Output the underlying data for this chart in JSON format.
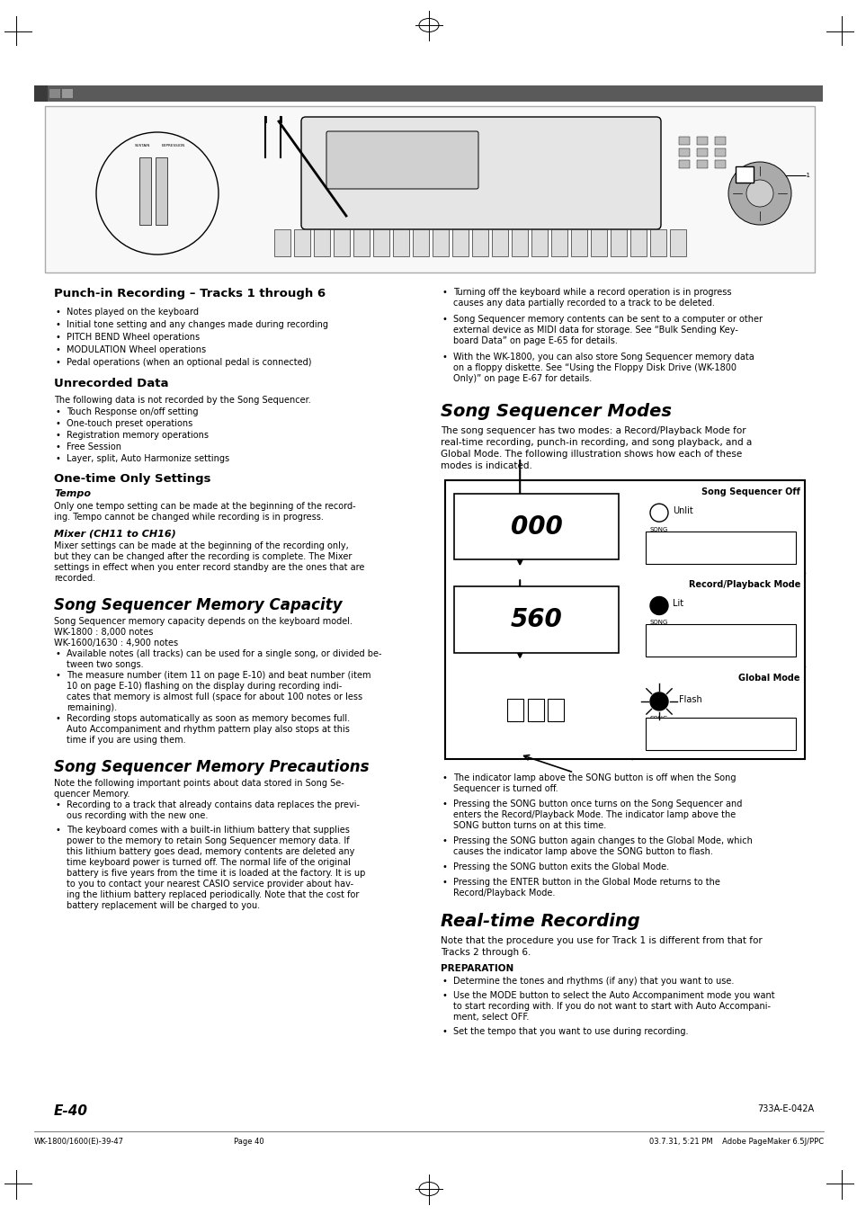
{
  "page_bg": "#ffffff",
  "page_width": 9.54,
  "page_height": 13.51,
  "dpi": 100,
  "header_bar_color": "#5a5a5a",
  "footer_left": "E-40",
  "footer_code": "733A-E-042A",
  "footer_printer": "WK-1800/1600(E)-39-47",
  "footer_page": "Page 40",
  "footer_date": "03.7.31, 5:21 PM    Adobe PageMaker 6.5J/PPC"
}
